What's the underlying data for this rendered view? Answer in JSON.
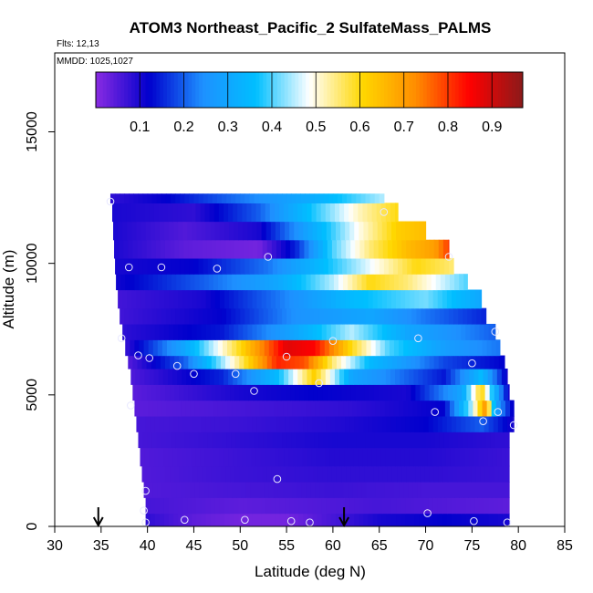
{
  "chart_data": {
    "type": "heatmap",
    "title": "ATOM3 Northeast_Pacific_2 SulfateMass_PALMS",
    "flights_label": "Flts: 12,13",
    "dates_label": "MMDD: 1025,1027",
    "xlabel": "Latitude (deg N)",
    "ylabel": "Altitude (m)",
    "xlim": [
      30,
      85
    ],
    "ylim": [
      0,
      18000
    ],
    "x_ticks": [
      30,
      35,
      40,
      45,
      50,
      55,
      60,
      65,
      70,
      75,
      80,
      85
    ],
    "y_ticks": [
      0,
      5000,
      10000,
      15000
    ],
    "colorbar": {
      "range": [
        0,
        0.97
      ],
      "ticks": [
        0.1,
        0.2,
        0.3,
        0.4,
        0.5,
        0.6,
        0.7,
        0.8,
        0.9
      ],
      "colors": [
        "#8a2be2",
        "#0000cd",
        "#1e90ff",
        "#00bfff",
        "#ffffff",
        "#ffd700",
        "#ff8c00",
        "#ff0000",
        "#8b1a1a"
      ],
      "placement": "top-inside"
    },
    "layers": [
      {
        "alt": 12300,
        "lat_start": 36.0,
        "lat_end": 65.5,
        "values": [
          [
            36,
            0.08
          ],
          [
            42,
            0.12
          ],
          [
            50,
            0.22
          ],
          [
            58,
            0.32
          ],
          [
            65.5,
            0.45
          ]
        ]
      },
      {
        "alt": 11600,
        "lat_start": 36.2,
        "lat_end": 67.0,
        "values": [
          [
            36,
            0.1
          ],
          [
            45,
            0.08
          ],
          [
            52,
            0.2
          ],
          [
            58,
            0.38
          ],
          [
            63,
            0.52
          ],
          [
            67,
            0.6
          ]
        ]
      },
      {
        "alt": 10900,
        "lat_start": 36.3,
        "lat_end": 70.0,
        "values": [
          [
            36,
            0.1
          ],
          [
            44,
            0.05
          ],
          [
            52,
            0.1
          ],
          [
            58,
            0.32
          ],
          [
            63,
            0.5
          ],
          [
            67,
            0.62
          ],
          [
            70,
            0.65
          ]
        ]
      },
      {
        "alt": 10200,
        "lat_start": 36.4,
        "lat_end": 72.5,
        "values": [
          [
            36,
            0.1
          ],
          [
            44,
            0.04
          ],
          [
            52,
            0.02
          ],
          [
            56,
            0.15
          ],
          [
            60,
            0.4
          ],
          [
            64,
            0.55
          ],
          [
            68,
            0.65
          ],
          [
            71,
            0.7
          ],
          [
            72.5,
            0.8
          ]
        ]
      },
      {
        "alt": 9600,
        "lat_start": 36.5,
        "lat_end": 73.0,
        "values": [
          [
            36,
            0.1
          ],
          [
            45,
            0.12
          ],
          [
            53,
            0.22
          ],
          [
            60,
            0.38
          ],
          [
            65,
            0.5
          ],
          [
            69,
            0.6
          ],
          [
            73,
            0.55
          ]
        ]
      },
      {
        "alt": 9000,
        "lat_start": 36.6,
        "lat_end": 74.5,
        "values": [
          [
            36,
            0.1
          ],
          [
            46,
            0.2
          ],
          [
            54,
            0.3
          ],
          [
            60,
            0.45
          ],
          [
            64,
            0.6
          ],
          [
            68,
            0.55
          ],
          [
            74.5,
            0.4
          ]
        ]
      },
      {
        "alt": 8300,
        "lat_start": 36.8,
        "lat_end": 76.0,
        "values": [
          [
            36,
            0.06
          ],
          [
            46,
            0.1
          ],
          [
            54,
            0.22
          ],
          [
            62,
            0.35
          ],
          [
            70,
            0.42
          ],
          [
            76,
            0.3
          ]
        ]
      },
      {
        "alt": 7700,
        "lat_start": 37.0,
        "lat_end": 76.5,
        "values": [
          [
            36,
            0.06
          ],
          [
            48,
            0.12
          ],
          [
            56,
            0.25
          ],
          [
            64,
            0.3
          ],
          [
            70,
            0.22
          ],
          [
            76.5,
            0.15
          ]
        ]
      },
      {
        "alt": 7100,
        "lat_start": 37.3,
        "lat_end": 77.5,
        "values": [
          [
            37,
            0.08
          ],
          [
            48,
            0.14
          ],
          [
            56,
            0.3
          ],
          [
            62,
            0.45
          ],
          [
            68,
            0.3
          ],
          [
            77.5,
            0.2
          ]
        ]
      },
      {
        "alt": 6500,
        "lat_start": 37.6,
        "lat_end": 78.0,
        "values": [
          [
            37,
            0.05
          ],
          [
            44,
            0.3
          ],
          [
            50,
            0.6
          ],
          [
            55,
            0.88
          ],
          [
            58,
            0.85
          ],
          [
            62,
            0.6
          ],
          [
            66,
            0.4
          ],
          [
            72,
            0.28
          ],
          [
            78,
            0.22
          ]
        ]
      },
      {
        "alt": 6000,
        "lat_start": 37.9,
        "lat_end": 78.5,
        "values": [
          [
            38,
            0.05
          ],
          [
            44,
            0.2
          ],
          [
            50,
            0.55
          ],
          [
            54,
            0.82
          ],
          [
            57,
            0.78
          ],
          [
            60,
            0.55
          ],
          [
            64,
            0.35
          ],
          [
            72,
            0.18
          ],
          [
            78.5,
            0.12
          ]
        ]
      },
      {
        "alt": 5400,
        "lat_start": 38.2,
        "lat_end": 78.8,
        "values": [
          [
            38,
            0.05
          ],
          [
            48,
            0.15
          ],
          [
            54,
            0.35
          ],
          [
            58,
            0.62
          ],
          [
            62,
            0.3
          ],
          [
            72,
            0.14
          ],
          [
            76,
            0.35
          ],
          [
            78.8,
            0.1
          ]
        ]
      },
      {
        "alt": 4800,
        "lat_start": 38.4,
        "lat_end": 79.0,
        "values": [
          [
            38,
            0.04
          ],
          [
            50,
            0.1
          ],
          [
            58,
            0.12
          ],
          [
            68,
            0.1
          ],
          [
            74,
            0.3
          ],
          [
            76,
            0.62
          ],
          [
            77,
            0.4
          ],
          [
            79,
            0.1
          ]
        ]
      },
      {
        "alt": 4200,
        "lat_start": 38.6,
        "lat_end": 79.5,
        "values": [
          [
            38,
            0.04
          ],
          [
            50,
            0.06
          ],
          [
            62,
            0.08
          ],
          [
            72,
            0.12
          ],
          [
            75,
            0.45
          ],
          [
            76.5,
            0.72
          ],
          [
            77.5,
            0.3
          ],
          [
            79.5,
            0.1
          ]
        ]
      },
      {
        "alt": 3600,
        "lat_start": 38.8,
        "lat_end": 79.5,
        "values": [
          [
            39,
            0.06
          ],
          [
            50,
            0.07
          ],
          [
            60,
            0.09
          ],
          [
            70,
            0.12
          ],
          [
            76,
            0.2
          ],
          [
            79.5,
            0.1
          ]
        ]
      },
      {
        "alt": 3000,
        "lat_start": 39.0,
        "lat_end": 79.0,
        "values": [
          [
            39,
            0.06
          ],
          [
            50,
            0.08
          ],
          [
            60,
            0.1
          ],
          [
            70,
            0.1
          ],
          [
            79,
            0.08
          ]
        ]
      },
      {
        "alt": 2300,
        "lat_start": 39.2,
        "lat_end": 79.0,
        "values": [
          [
            39,
            0.05
          ],
          [
            50,
            0.07
          ],
          [
            60,
            0.09
          ],
          [
            70,
            0.09
          ],
          [
            79,
            0.07
          ]
        ]
      },
      {
        "alt": 1700,
        "lat_start": 39.4,
        "lat_end": 79.0,
        "values": [
          [
            39,
            0.05
          ],
          [
            50,
            0.07
          ],
          [
            60,
            0.08
          ],
          [
            70,
            0.08
          ],
          [
            79,
            0.07
          ]
        ]
      },
      {
        "alt": 1100,
        "lat_start": 39.6,
        "lat_end": 79.0,
        "values": [
          [
            39,
            0.05
          ],
          [
            50,
            0.06
          ],
          [
            60,
            0.07
          ],
          [
            70,
            0.06
          ],
          [
            79,
            0.06
          ]
        ]
      },
      {
        "alt": 500,
        "lat_start": 39.8,
        "lat_end": 79.0,
        "values": [
          [
            40,
            0.06
          ],
          [
            50,
            0.04
          ],
          [
            58,
            0.05
          ],
          [
            65,
            0.06
          ],
          [
            72,
            0.05
          ],
          [
            79,
            0.04
          ]
        ]
      },
      {
        "alt": 100,
        "lat_start": 39.8,
        "lat_end": 79.0,
        "values": [
          [
            40,
            0.08
          ],
          [
            45,
            0.04
          ],
          [
            50,
            0.02
          ],
          [
            55,
            0.02
          ],
          [
            60,
            0.06
          ],
          [
            65,
            0.1
          ],
          [
            72,
            0.12
          ],
          [
            79,
            0.1
          ]
        ]
      }
    ],
    "sample_points": [
      [
        36.0,
        12350
      ],
      [
        65.5,
        11950
      ],
      [
        53.0,
        10250
      ],
      [
        72.5,
        10250
      ],
      [
        38.0,
        9850
      ],
      [
        41.5,
        9850
      ],
      [
        47.5,
        9800
      ],
      [
        37.2,
        7150
      ],
      [
        60.0,
        7050
      ],
      [
        69.2,
        7150
      ],
      [
        77.5,
        7400
      ],
      [
        39.0,
        6500
      ],
      [
        40.2,
        6400
      ],
      [
        55.0,
        6450
      ],
      [
        43.2,
        6100
      ],
      [
        45.0,
        5800
      ],
      [
        49.5,
        5800
      ],
      [
        58.5,
        5450
      ],
      [
        51.5,
        5150
      ],
      [
        75.0,
        6200
      ],
      [
        38.2,
        4600
      ],
      [
        71.0,
        4350
      ],
      [
        77.8,
        4350
      ],
      [
        76.2,
        4000
      ],
      [
        79.5,
        3850
      ],
      [
        54.0,
        1800
      ],
      [
        39.8,
        1350
      ],
      [
        39.6,
        600
      ],
      [
        70.2,
        500
      ],
      [
        44.0,
        250
      ],
      [
        50.5,
        250
      ],
      [
        55.5,
        200
      ],
      [
        57.5,
        150
      ],
      [
        75.2,
        200
      ],
      [
        78.8,
        150
      ],
      [
        39.8,
        150
      ]
    ],
    "arrows_lat": [
      34.7,
      61.2
    ]
  }
}
